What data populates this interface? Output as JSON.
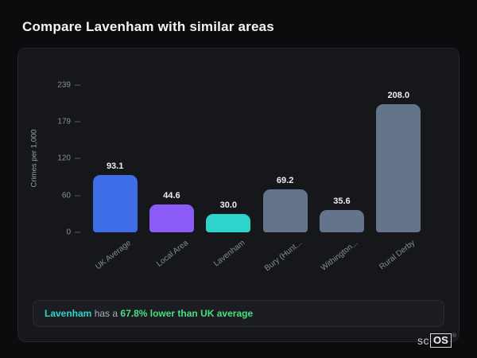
{
  "page": {
    "title": "Compare Lavenham with similar areas"
  },
  "chart_data": {
    "type": "bar",
    "categories": [
      "UK Average",
      "Local Area",
      "Lavenham",
      "Bury (Hunt...",
      "Withington...",
      "Rural Derby"
    ],
    "values": [
      93.1,
      44.6,
      30.0,
      69.2,
      35.6,
      208.0
    ],
    "colors": [
      "#3e6de8",
      "#8b5cf6",
      "#2dd4cb",
      "#64748b",
      "#64748b",
      "#64748b"
    ],
    "title": "",
    "xlabel": "",
    "ylabel": "Crimes per 1,000",
    "yticks": [
      239,
      179,
      120,
      60,
      0
    ],
    "ylim": [
      0,
      239
    ],
    "grid": false,
    "legend": false
  },
  "footer_note": {
    "subject": "Lavenham",
    "middle": " has a ",
    "highlight": "67.8% lower than UK average",
    "subject_color": "#2dd4cb",
    "highlight_color": "#4ade80"
  },
  "logo": {
    "prefix": "sc",
    "boxed": "OS",
    "registered": "®"
  }
}
